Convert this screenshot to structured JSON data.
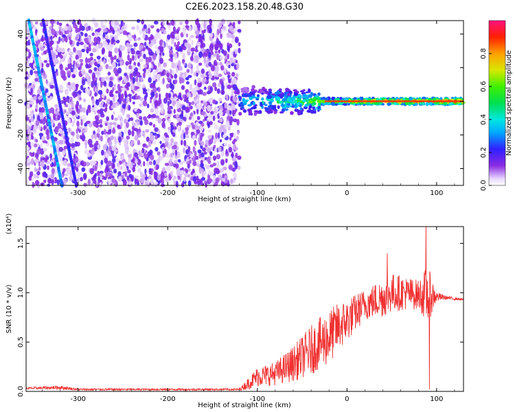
{
  "title": "C2E6.2023.158.20.48.G30",
  "chart_data": [
    {
      "type": "heatmap",
      "xlabel": "Height of straight line (km)",
      "ylabel": "Frequency (Hz)",
      "xlim": [
        -358,
        130
      ],
      "ylim": [
        -50,
        48
      ],
      "xticks": [
        -300,
        -200,
        -100,
        0,
        100
      ],
      "yticks": [
        -40,
        -20,
        0,
        20,
        40
      ],
      "colorbar": {
        "label": "Normalized spectral amplitude",
        "range": [
          0.0,
          1.0
        ],
        "ticks": [
          0.0,
          0.2,
          0.4,
          0.6,
          0.8
        ],
        "tick_labels": [
          "0.0",
          "0.2",
          "0.4",
          "0.6",
          "0.8"
        ]
      },
      "regions": [
        {
          "kind": "broadband-noise",
          "x": [
            -358,
            -120
          ],
          "y": [
            -50,
            48
          ],
          "level": 0.15
        },
        {
          "kind": "diagonal-streak",
          "x": [
            -355,
            -318
          ],
          "y": [
            48,
            -50
          ],
          "level": 0.3
        },
        {
          "kind": "signal-band",
          "x": [
            -120,
            130
          ],
          "y_center": 0,
          "level_start": 0.35,
          "level_end": 0.9
        }
      ]
    },
    {
      "type": "line",
      "xlabel": "Height of straight line (km)",
      "ylabel": "SNR (10 * v/v)",
      "yscale_label": "(x10⁴)",
      "xlim": [
        -358,
        130
      ],
      "ylim": [
        0,
        1.67
      ],
      "xticks": [
        -300,
        -200,
        -100,
        0,
        100
      ],
      "yticks": [
        0.0,
        0.5,
        1.0,
        1.5
      ],
      "ytick_labels": [
        "0.0",
        "0.5",
        "1.0",
        "1.5"
      ],
      "envelope": {
        "x": [
          -358,
          -320,
          -300,
          -200,
          -120,
          -110,
          -100,
          -80,
          -60,
          -40,
          -20,
          -10,
          0,
          20,
          40,
          50,
          60,
          80,
          90,
          100,
          110,
          130
        ],
        "mean": [
          0.03,
          0.04,
          0.02,
          0.02,
          0.02,
          0.08,
          0.15,
          0.18,
          0.28,
          0.42,
          0.55,
          0.65,
          0.72,
          0.88,
          0.95,
          1.0,
          1.0,
          0.98,
          0.98,
          0.96,
          0.95,
          0.93
        ],
        "amp": [
          0.01,
          0.02,
          0.01,
          0.01,
          0.01,
          0.06,
          0.1,
          0.12,
          0.18,
          0.25,
          0.28,
          0.25,
          0.22,
          0.16,
          0.2,
          0.2,
          0.18,
          0.15,
          0.3,
          0.05,
          0.02,
          0.01
        ]
      },
      "peaks": [
        {
          "x": 88,
          "y": 1.67
        },
        {
          "x": 45,
          "y": 1.4
        },
        {
          "x": 92,
          "y": 0.02
        }
      ],
      "color": "#f03030"
    }
  ]
}
